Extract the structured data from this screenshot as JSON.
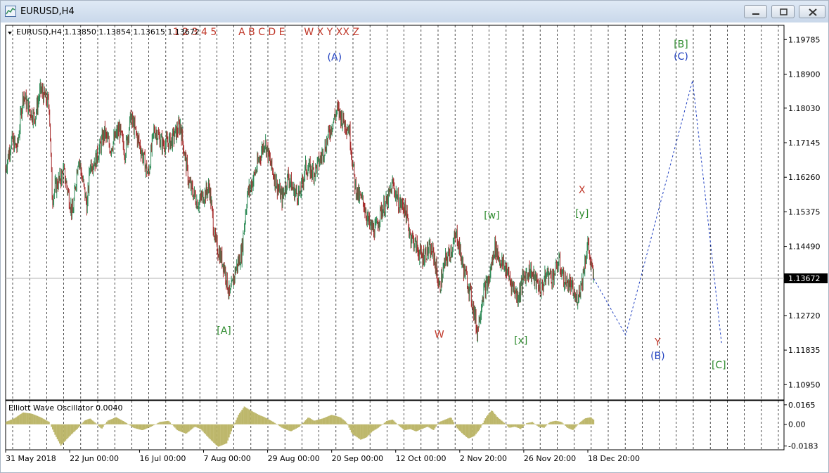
{
  "window": {
    "title": "EURUSD,H4",
    "minimize_label": "minimize",
    "restore_label": "restore",
    "close_label": "close"
  },
  "chart_data": {
    "type": "candlestick",
    "symbol": "EURUSD",
    "timeframe": "H4",
    "info_line": "EURUSD,H4  1.13850 1.13854 1.13615 1.13672",
    "ohlc": {
      "open": 1.1385,
      "high": 1.13854,
      "low": 1.13615,
      "close": 1.13672
    },
    "current_price_label": "1.13672",
    "current_price": 1.13672,
    "ylim": [
      1.1056,
      1.2015
    ],
    "y_ticks": [
      "1.19785",
      "1.18900",
      "1.18030",
      "1.17145",
      "1.16260",
      "1.15375",
      "1.14490",
      "1.13672",
      "1.12720",
      "1.11835",
      "1.10950"
    ],
    "x_ticks": [
      "31 May 2018",
      "22 Jun 00:00",
      "16 Jul 00:00",
      "7 Aug 00:00",
      "29 Aug 00:00",
      "20 Sep 00:00",
      "12 Oct 00:00",
      "2 Nov 20:00",
      "26 Nov 20:00",
      "18 Dec 20:00"
    ],
    "x_range_days": [
      0,
      221
    ],
    "x_tick_days": [
      0,
      22,
      46,
      68,
      90,
      112,
      134,
      156,
      178,
      200
    ],
    "colors": {
      "up": "#2e8b57",
      "down": "#a52a2a",
      "projection": "#1f3fbf",
      "osc": "#bdb76b",
      "wave_red": "#c0392b",
      "wave_blue": "#1f3fbf",
      "wave_green": "#2e8b2e"
    },
    "price_path": [
      [
        0,
        1.165
      ],
      [
        2,
        1.172
      ],
      [
        4,
        1.17
      ],
      [
        6,
        1.184
      ],
      [
        8,
        1.18
      ],
      [
        10,
        1.178
      ],
      [
        12,
        1.185
      ],
      [
        15,
        1.181
      ],
      [
        16,
        1.157
      ],
      [
        17,
        1.16
      ],
      [
        20,
        1.164
      ],
      [
        23,
        1.153
      ],
      [
        25,
        1.168
      ],
      [
        28,
        1.155
      ],
      [
        29,
        1.166
      ],
      [
        31,
        1.167
      ],
      [
        34,
        1.174
      ],
      [
        36,
        1.17
      ],
      [
        39,
        1.175
      ],
      [
        41,
        1.169
      ],
      [
        43,
        1.178
      ],
      [
        46,
        1.171
      ],
      [
        49,
        1.163
      ],
      [
        51,
        1.175
      ],
      [
        54,
        1.171
      ],
      [
        57,
        1.172
      ],
      [
        60,
        1.176
      ],
      [
        62,
        1.166
      ],
      [
        63,
        1.161
      ],
      [
        66,
        1.156
      ],
      [
        68,
        1.158
      ],
      [
        70,
        1.16
      ],
      [
        72,
        1.146
      ],
      [
        75,
        1.14
      ],
      [
        77,
        1.132
      ],
      [
        79,
        1.139
      ],
      [
        81,
        1.143
      ],
      [
        83,
        1.158
      ],
      [
        85,
        1.162
      ],
      [
        87,
        1.167
      ],
      [
        89,
        1.172
      ],
      [
        91,
        1.166
      ],
      [
        93,
        1.161
      ],
      [
        95,
        1.157
      ],
      [
        97,
        1.163
      ],
      [
        99,
        1.159
      ],
      [
        101,
        1.158
      ],
      [
        103,
        1.165
      ],
      [
        106,
        1.164
      ],
      [
        108,
        1.167
      ],
      [
        110,
        1.171
      ],
      [
        112,
        1.176
      ],
      [
        114,
        1.18
      ],
      [
        116,
        1.177
      ],
      [
        118,
        1.175
      ],
      [
        120,
        1.161
      ],
      [
        121,
        1.158
      ],
      [
        123,
        1.156
      ],
      [
        125,
        1.15
      ],
      [
        127,
        1.149
      ],
      [
        129,
        1.154
      ],
      [
        131,
        1.156
      ],
      [
        133,
        1.161
      ],
      [
        135,
        1.156
      ],
      [
        137,
        1.155
      ],
      [
        139,
        1.148
      ],
      [
        141,
        1.145
      ],
      [
        143,
        1.142
      ],
      [
        145,
        1.144
      ],
      [
        147,
        1.143
      ],
      [
        149,
        1.134
      ],
      [
        151,
        1.141
      ],
      [
        153,
        1.144
      ],
      [
        155,
        1.148
      ],
      [
        157,
        1.14
      ],
      [
        159,
        1.135
      ],
      [
        161,
        1.128
      ],
      [
        162,
        1.123
      ],
      [
        164,
        1.133
      ],
      [
        166,
        1.136
      ],
      [
        168,
        1.145
      ],
      [
        170,
        1.141
      ],
      [
        172,
        1.139
      ],
      [
        174,
        1.135
      ],
      [
        176,
        1.132
      ],
      [
        178,
        1.137
      ],
      [
        180,
        1.139
      ],
      [
        182,
        1.136
      ],
      [
        184,
        1.134
      ],
      [
        186,
        1.138
      ],
      [
        188,
        1.137
      ],
      [
        190,
        1.141
      ],
      [
        192,
        1.136
      ],
      [
        194,
        1.135
      ],
      [
        196,
        1.131
      ],
      [
        198,
        1.136
      ],
      [
        200,
        1.146
      ],
      [
        201,
        1.14
      ],
      [
        202,
        1.1367
      ]
    ],
    "projection_path": [
      [
        202,
        1.1367
      ],
      [
        213,
        1.1222
      ],
      [
        236,
        1.1874
      ],
      [
        246,
        1.1197
      ]
    ],
    "top_labels": [
      {
        "text": "1 2 3 4 5",
        "day": 65
      },
      {
        "text": "A B C D E",
        "day": 88
      },
      {
        "text": "W X Y XX Z",
        "day": 112
      }
    ],
    "wave_labels": [
      {
        "text": "(A)",
        "day": 113,
        "price": 1.1925,
        "color": "wave_blue"
      },
      {
        "text": "[A]",
        "day": 75,
        "price": 1.1225,
        "color": "wave_green"
      },
      {
        "text": "W",
        "day": 149,
        "price": 1.1215,
        "color": "wave_red"
      },
      {
        "text": "[w]",
        "day": 167,
        "price": 1.152,
        "color": "wave_green"
      },
      {
        "text": "[x]",
        "day": 177,
        "price": 1.12,
        "color": "wave_green"
      },
      {
        "text": "X",
        "day": 198,
        "price": 1.1585,
        "color": "wave_red"
      },
      {
        "text": "[y]",
        "day": 198,
        "price": 1.1525,
        "color": "wave_green"
      },
      {
        "text": "Y",
        "day": 224,
        "price": 1.1195,
        "color": "wave_red"
      },
      {
        "text": "(B)",
        "day": 224,
        "price": 1.116,
        "color": "wave_blue"
      },
      {
        "text": "[B]",
        "day": 232,
        "price": 1.1958,
        "color": "wave_green"
      },
      {
        "text": "(C)",
        "day": 232,
        "price": 1.1927,
        "color": "wave_blue"
      },
      {
        "text": "[C]",
        "day": 245,
        "price": 1.1137,
        "color": "wave_green"
      }
    ],
    "oscillator": {
      "title": "Elliott Wave Oscillator 0.0040",
      "y_ticks": [
        "0.0165",
        "0.00",
        "-0.0183"
      ],
      "ylim": [
        -0.0215,
        0.02
      ],
      "path": [
        [
          0,
          0.002
        ],
        [
          3,
          0.005
        ],
        [
          6,
          0.01
        ],
        [
          9,
          0.009
        ],
        [
          12,
          0.006
        ],
        [
          15,
          0.002
        ],
        [
          17,
          -0.009
        ],
        [
          19,
          -0.018
        ],
        [
          22,
          -0.01
        ],
        [
          25,
          -0.003
        ],
        [
          27,
          0.003
        ],
        [
          29,
          0.005
        ],
        [
          31,
          0.001
        ],
        [
          33,
          -0.004
        ],
        [
          35,
          0.003
        ],
        [
          38,
          0.006
        ],
        [
          41,
          0.002
        ],
        [
          44,
          -0.003
        ],
        [
          47,
          -0.005
        ],
        [
          50,
          -0.002
        ],
        [
          53,
          0.002
        ],
        [
          56,
          0.003
        ],
        [
          59,
          -0.005
        ],
        [
          62,
          -0.008
        ],
        [
          65,
          -0.002
        ],
        [
          67,
          -0.004
        ],
        [
          70,
          -0.012
        ],
        [
          73,
          -0.019
        ],
        [
          76,
          -0.016
        ],
        [
          78,
          -0.003
        ],
        [
          80,
          0.008
        ],
        [
          82,
          0.015
        ],
        [
          84,
          0.012
        ],
        [
          87,
          0.008
        ],
        [
          89,
          0.006
        ],
        [
          92,
          0.002
        ],
        [
          95,
          -0.003
        ],
        [
          98,
          -0.006
        ],
        [
          101,
          -0.002
        ],
        [
          104,
          0.006
        ],
        [
          106,
          0.003
        ],
        [
          109,
          0.005
        ],
        [
          112,
          0.008
        ],
        [
          115,
          0.006
        ],
        [
          117,
          0.002
        ],
        [
          119,
          -0.008
        ],
        [
          122,
          -0.013
        ],
        [
          124,
          -0.011
        ],
        [
          126,
          -0.006
        ],
        [
          128,
          -0.003
        ],
        [
          131,
          0.003
        ],
        [
          133,
          0.004
        ],
        [
          135,
          -0.001
        ],
        [
          137,
          -0.005
        ],
        [
          139,
          -0.004
        ],
        [
          141,
          -0.006
        ],
        [
          143,
          -0.004
        ],
        [
          145,
          -0.002
        ],
        [
          147,
          -0.005
        ],
        [
          149,
          0.002
        ],
        [
          151,
          0.004
        ],
        [
          153,
          0.006
        ],
        [
          155,
          -0.003
        ],
        [
          157,
          -0.008
        ],
        [
          159,
          -0.012
        ],
        [
          161,
          -0.01
        ],
        [
          163,
          -0.004
        ],
        [
          165,
          0.006
        ],
        [
          167,
          0.012
        ],
        [
          169,
          0.006
        ],
        [
          171,
          0.002
        ],
        [
          173,
          -0.003
        ],
        [
          175,
          -0.002
        ],
        [
          177,
          -0.004
        ],
        [
          179,
          0.001
        ],
        [
          181,
          0.002
        ],
        [
          183,
          -0.002
        ],
        [
          185,
          -0.003
        ],
        [
          187,
          0.002
        ],
        [
          189,
          0.003
        ],
        [
          191,
          0.002
        ],
        [
          193,
          -0.003
        ],
        [
          195,
          -0.005
        ],
        [
          197,
          0.001
        ],
        [
          199,
          0.005
        ],
        [
          201,
          0.006
        ],
        [
          202,
          0.004
        ]
      ]
    }
  }
}
